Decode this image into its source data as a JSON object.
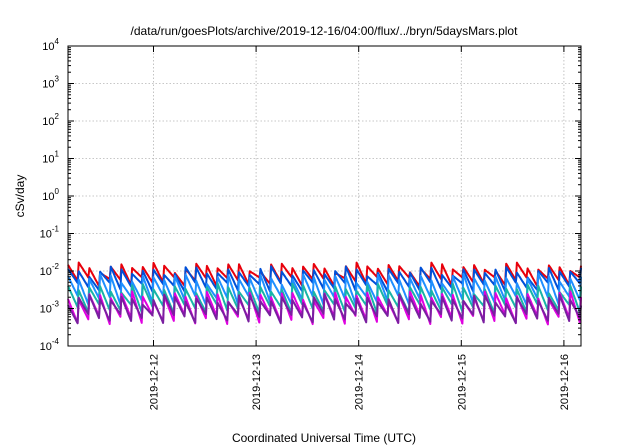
{
  "chart_data": {
    "type": "line",
    "title": "/data/run/goesPlots/archive/2019-12-16/04:00/flux/../bryn/5daysMars.plot",
    "xlabel": "Coordinated Universal Time (UTC)",
    "ylabel": "cSv/day",
    "y_scale": "log",
    "ylim": [
      0.0001,
      10000
    ],
    "xlim": [
      "2019-12-11T04:00",
      "2019-12-16T04:00"
    ],
    "grid": true,
    "x_ticks": [
      {
        "value": "2019-12-12T00:00",
        "label": "2019-12-12"
      },
      {
        "value": "2019-12-13T00:00",
        "label": "2019-12-13"
      },
      {
        "value": "2019-12-14T00:00",
        "label": "2019-12-14"
      },
      {
        "value": "2019-12-15T00:00",
        "label": "2019-12-15"
      },
      {
        "value": "2019-12-16T00:00",
        "label": "2019-12-16"
      }
    ],
    "y_ticks": [
      {
        "value": 10000,
        "base": "10",
        "exp": "4"
      },
      {
        "value": 1000,
        "base": "10",
        "exp": "3"
      },
      {
        "value": 100,
        "base": "10",
        "exp": "2"
      },
      {
        "value": 10,
        "base": "10",
        "exp": "1"
      },
      {
        "value": 1,
        "base": "10",
        "exp": "0"
      },
      {
        "value": 0.1,
        "base": "10",
        "exp": "-1"
      },
      {
        "value": 0.01,
        "base": "10",
        "exp": "-2"
      },
      {
        "value": 0.001,
        "base": "10",
        "exp": "-3"
      },
      {
        "value": 0.0001,
        "base": "10",
        "exp": "-4"
      }
    ],
    "cycle_hours": 2.5,
    "series": [
      {
        "color": "#e8000b",
        "peak": 0.013,
        "trough": 0.005
      },
      {
        "color": "#0050d8",
        "peak": 0.01,
        "trough": 0.0035
      },
      {
        "color": "#1f8fff",
        "peak": 0.0065,
        "trough": 0.0015
      },
      {
        "color": "#18b4a8",
        "peak": 0.0035,
        "trough": 0.0009
      },
      {
        "color": "#e000e0",
        "peak": 0.0022,
        "trough": 0.00045
      },
      {
        "color": "#7a1fa0",
        "peak": 0.0018,
        "trough": 0.0005
      }
    ]
  }
}
